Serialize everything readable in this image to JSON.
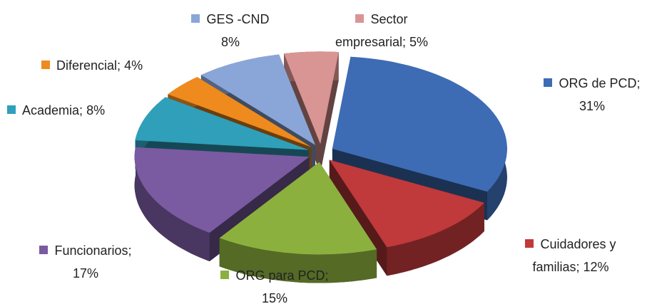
{
  "chart_data": {
    "type": "pie",
    "categories": [
      "ORG de PCD;",
      "Cuidadores y familias;",
      "ORG para PCD;",
      "Funcionarios;",
      "Academia;",
      "Diferencial;",
      "GES -CND",
      "Sector empresarial;"
    ],
    "values": [
      31,
      12,
      15,
      17,
      8,
      4,
      8,
      5
    ],
    "value_labels": [
      "31%",
      "12%",
      "15%",
      "17%",
      "8%",
      "4%",
      "8%",
      "5%"
    ],
    "colors": [
      "#3d6cb5",
      "#c0393b",
      "#8cb03e",
      "#7a5aa1",
      "#2f9fba",
      "#ee8a1e",
      "#8aa6d8",
      "#d99593"
    ]
  }
}
